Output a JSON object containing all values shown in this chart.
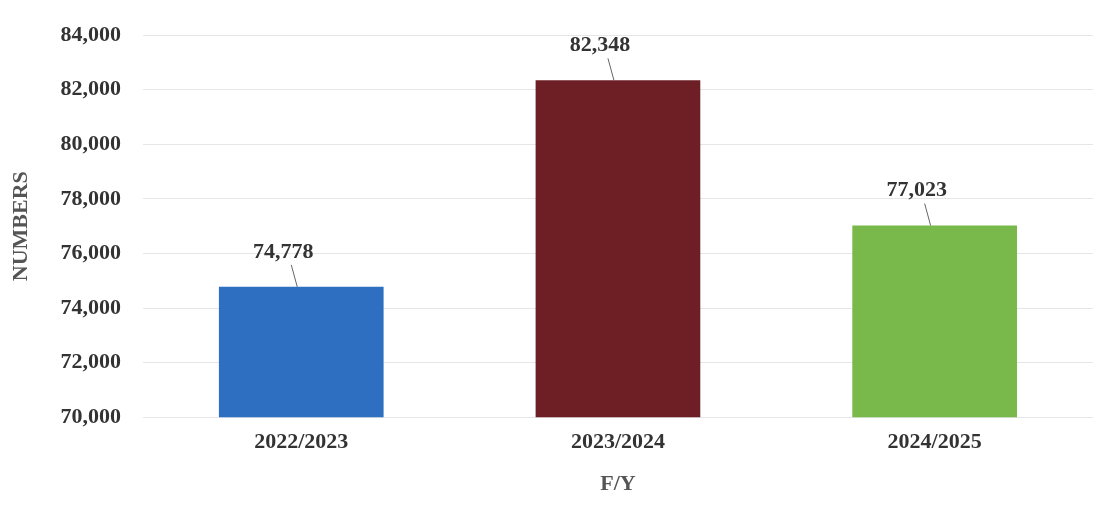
{
  "chart_data": {
    "type": "bar",
    "xlabel": "F/Y",
    "ylabel": "NUMBERS",
    "categories": [
      "2022/2023",
      "2023/2024",
      "2024/2025"
    ],
    "values": [
      74778,
      82348,
      77023
    ],
    "value_labels": [
      "74,778",
      "82,348",
      "77,023"
    ],
    "colors": [
      "#2f6fc1",
      "#6e1f26",
      "#79b84a"
    ],
    "ylim": [
      70000,
      84000
    ],
    "yticks": [
      {
        "value": 70000,
        "label": "70,000"
      },
      {
        "value": 72000,
        "label": "72,000"
      },
      {
        "value": 74000,
        "label": "74,000"
      },
      {
        "value": 76000,
        "label": "76,000"
      },
      {
        "value": 78000,
        "label": "78,000"
      },
      {
        "value": 80000,
        "label": "80,000"
      },
      {
        "value": 82000,
        "label": "82,000"
      },
      {
        "value": 84000,
        "label": "84,000"
      }
    ],
    "grid": "y",
    "legend": false
  }
}
